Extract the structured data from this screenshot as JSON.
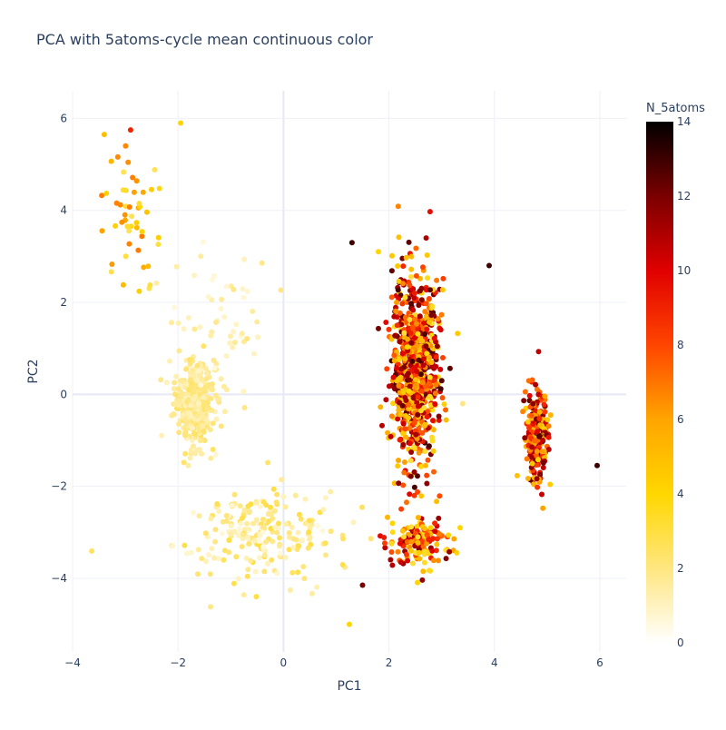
{
  "chart_data": {
    "type": "scatter",
    "title": "PCA with 5atoms-cycle mean continuous color",
    "xlabel": "PC1",
    "ylabel": "PC2",
    "xlim": [
      -4,
      6.5
    ],
    "ylim": [
      -5.6,
      6.6
    ],
    "xticks": [
      -4,
      -2,
      0,
      2,
      4,
      6
    ],
    "yticks": [
      -4,
      -2,
      0,
      2,
      4,
      6
    ],
    "grid": true,
    "colorbar": {
      "title": "N_5atoms",
      "range": [
        0,
        14
      ],
      "ticks": [
        0,
        2,
        4,
        6,
        8,
        10,
        12,
        14
      ],
      "colorscale": [
        "#ffffff",
        "#ffe680",
        "#ffd700",
        "#ffa500",
        "#ff4500",
        "#e00000",
        "#7a0000",
        "#000000"
      ]
    },
    "clusters": [
      {
        "center": [
          -1.7,
          -0.2
        ],
        "spread": [
          0.3,
          0.75
        ],
        "count": 380,
        "value_range": [
          1,
          2.5
        ]
      },
      {
        "center": [
          -0.5,
          -3.0
        ],
        "spread": [
          1.3,
          0.8
        ],
        "count": 220,
        "value_range": [
          0.5,
          3
        ]
      },
      {
        "center": [
          -2.9,
          3.8
        ],
        "spread": [
          0.5,
          1.3
        ],
        "count": 50,
        "value_range": [
          2.5,
          7
        ]
      },
      {
        "center": [
          -1.2,
          1.4
        ],
        "spread": [
          0.9,
          1.4
        ],
        "count": 60,
        "value_range": [
          0.5,
          2
        ]
      },
      {
        "center": [
          2.5,
          0.5
        ],
        "spread": [
          0.35,
          1.7
        ],
        "count": 950,
        "value_range": [
          3,
          13
        ]
      },
      {
        "center": [
          2.6,
          -3.2
        ],
        "spread": [
          0.5,
          0.5
        ],
        "count": 150,
        "value_range": [
          3,
          12
        ]
      },
      {
        "center": [
          4.8,
          -0.9
        ],
        "spread": [
          0.18,
          0.85
        ],
        "count": 230,
        "value_range": [
          4,
          13
        ]
      }
    ],
    "outliers": [
      {
        "x": 3.9,
        "y": 2.8,
        "value": 13
      },
      {
        "x": 1.3,
        "y": 3.3,
        "value": 13
      },
      {
        "x": 5.95,
        "y": -1.55,
        "value": 13
      },
      {
        "x": 1.25,
        "y": -5.0,
        "value": 4
      },
      {
        "x": -1.95,
        "y": 5.9,
        "value": 4
      },
      {
        "x": -2.9,
        "y": 5.75,
        "value": 9
      },
      {
        "x": -3.4,
        "y": 5.65,
        "value": 5
      },
      {
        "x": 1.5,
        "y": -4.15,
        "value": 12
      },
      {
        "x": 1.8,
        "y": 3.1,
        "value": 4
      },
      {
        "x": 3.4,
        "y": -0.2,
        "value": 2
      }
    ]
  }
}
